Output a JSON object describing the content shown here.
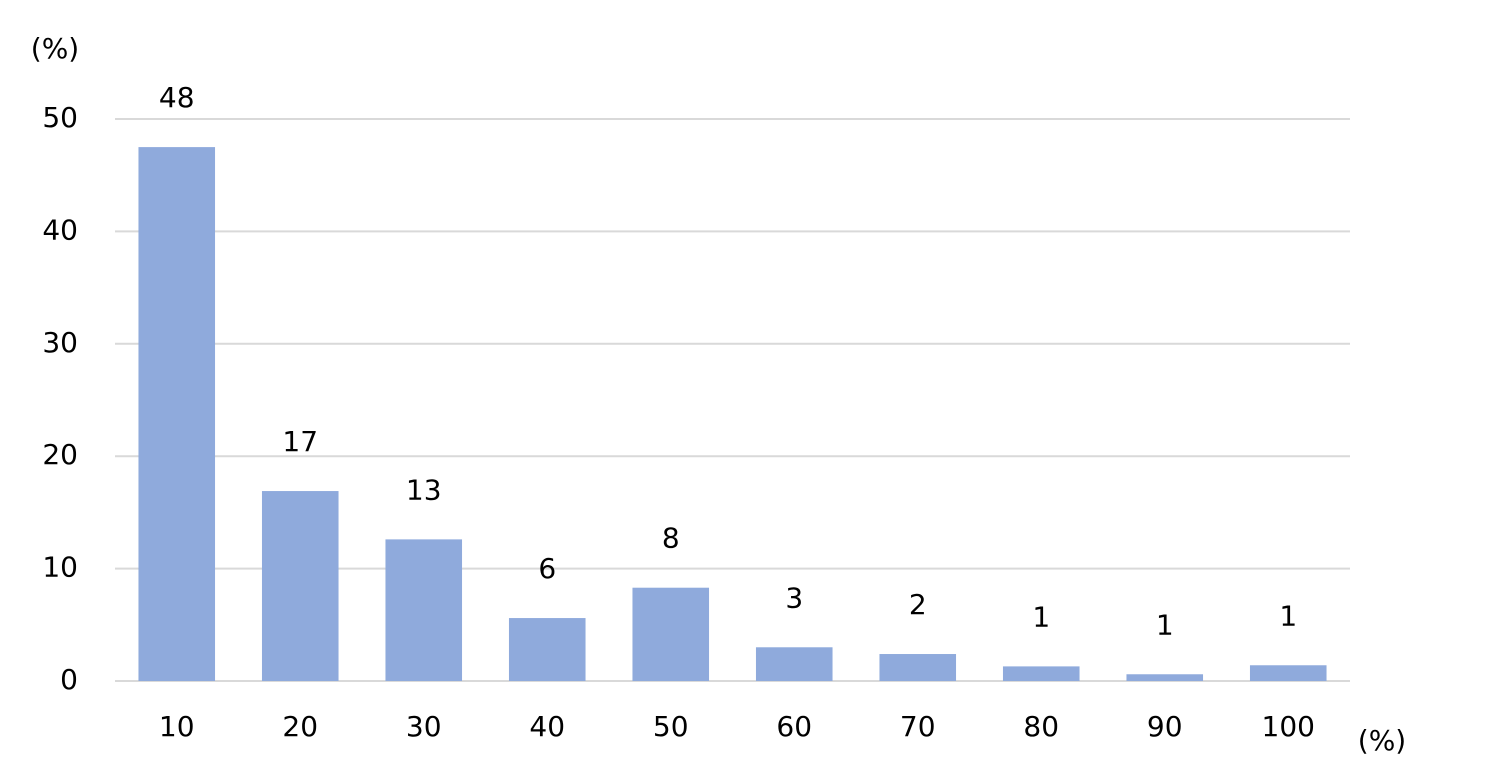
{
  "chart_data": {
    "type": "bar",
    "y_axis_label": "(%)",
    "x_axis_label": "(%)",
    "categories": [
      "10",
      "20",
      "30",
      "40",
      "50",
      "60",
      "70",
      "80",
      "90",
      "100"
    ],
    "values": [
      47.5,
      16.9,
      12.6,
      5.6,
      8.3,
      3.0,
      2.4,
      1.3,
      0.6,
      1.4
    ],
    "value_labels": [
      "48",
      "17",
      "13",
      "6",
      "8",
      "3",
      "2",
      "1",
      "1",
      "1"
    ],
    "color": "#8faadc",
    "ylim": [
      0,
      50
    ],
    "yticks": [
      0,
      10,
      20,
      30,
      40,
      50
    ],
    "grid": true
  }
}
